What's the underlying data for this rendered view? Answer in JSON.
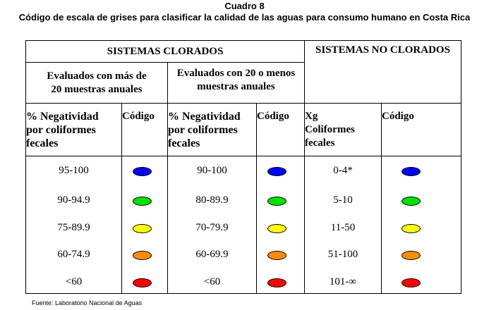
{
  "caption": {
    "title": "Cuadro 8",
    "subtitle": "Código de escala de grises para clasificar la calidad de las aguas para consumo humano en Costa Rica"
  },
  "table": {
    "group_clorados": "SISTEMAS CLORADOS",
    "group_no_clorados": "SISTEMAS NO CLORADOS",
    "sub_mas_20": [
      "Evaluados con más de",
      "20 muestras anuales"
    ],
    "sub_20_menos": [
      "Evaluados con 20 o menos",
      "muestras anuales"
    ],
    "col_headers": [
      [
        "% Negatividad",
        "por  coliformes",
        "fecales"
      ],
      [
        "Código"
      ],
      [
        "% Negatividad",
        "por  coliformes",
        "fecales"
      ],
      [
        "Código"
      ],
      [
        "Xg",
        "Coliformes",
        "fecales"
      ],
      [
        "Código"
      ]
    ],
    "colors": {
      "blue": "#0000ff",
      "green": "#00e000",
      "yellow": "#ffff00",
      "orange": "#ff8c00",
      "red": "#ff0000"
    },
    "rows": [
      {
        "col1": "95-100",
        "col3": "90-100",
        "col5": "0-4*",
        "color": "blue"
      },
      {
        "col1": "90-94.9",
        "col3": "80-89.9",
        "col5": "5-10",
        "color": "green"
      },
      {
        "col1": "75-89.9",
        "col3": "70-79.9",
        "col5": "11-50",
        "color": "yellow"
      },
      {
        "col1": "60-74.9",
        "col3": "60-69.9",
        "col5": "51-100",
        "color": "orange"
      },
      {
        "col1": "<60",
        "col3": "<60",
        "col5": "101-∞",
        "color": "red"
      }
    ]
  },
  "source": "Fuente: Laboratorio Nacional de Aguas"
}
